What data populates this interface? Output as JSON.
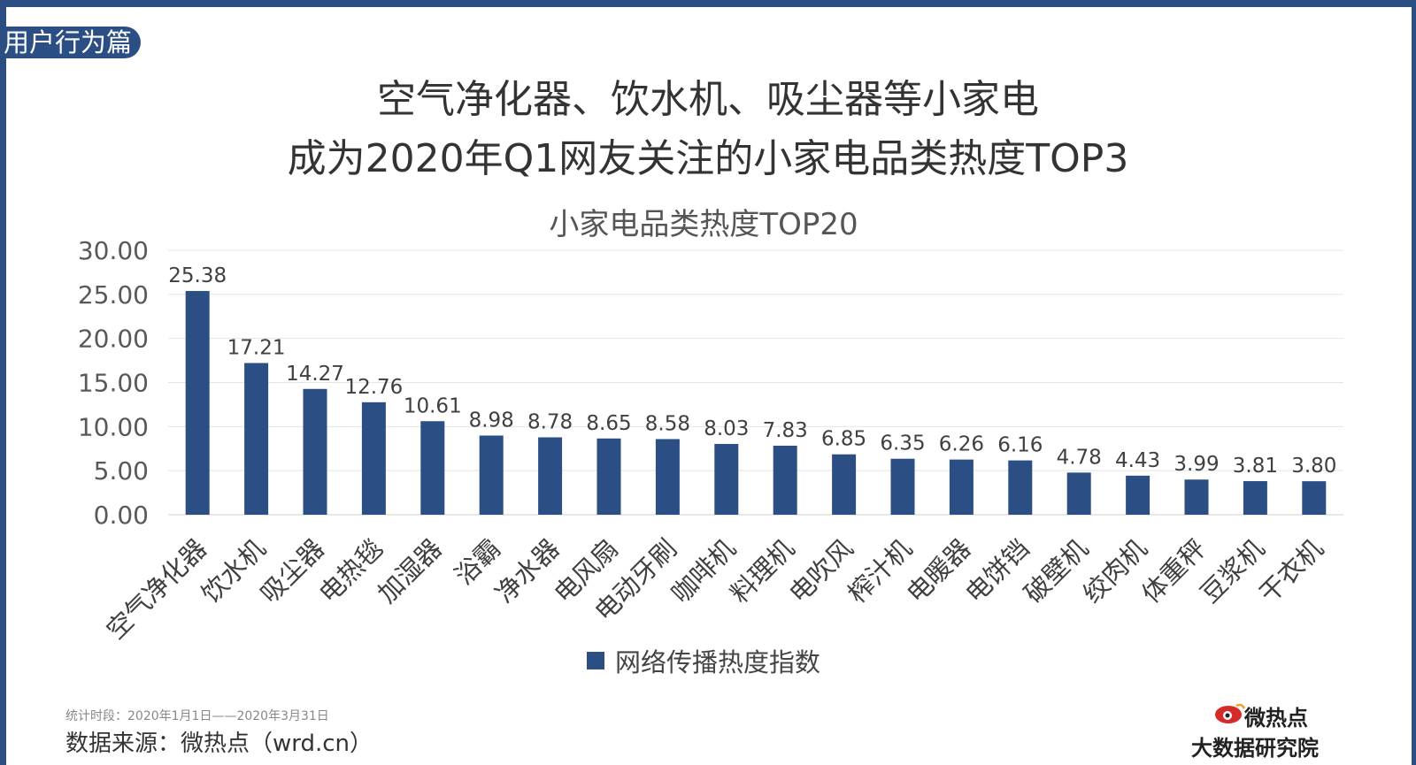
{
  "section_tag": "用户行为篇",
  "headline": {
    "line1": "空气净化器、饮水机、吸尘器等小家电",
    "line2": "成为2020年Q1网友关注的小家电品类热度TOP3"
  },
  "footer": {
    "period": "统计时段：2020年1月1日——2020年3月31日",
    "source": "数据来源：微热点（wrd.cn）"
  },
  "logo": {
    "name": "微热点",
    "subtitle": "大数据研究院",
    "icon": "weibo-eye-icon"
  },
  "colors": {
    "frame": "#2b4f84",
    "bar": "#2b4f84",
    "accent_red": "#d62b2b"
  },
  "chart_data": {
    "type": "bar",
    "title": "小家电品类热度TOP20",
    "xlabel": "",
    "ylabel": "",
    "categories": [
      "空气净化器",
      "饮水机",
      "吸尘器",
      "电热毯",
      "加湿器",
      "浴霸",
      "净水器",
      "电风扇",
      "电动牙刷",
      "咖啡机",
      "料理机",
      "电吹风",
      "榨汁机",
      "电暖器",
      "电饼铛",
      "破壁机",
      "绞肉机",
      "体重秤",
      "豆浆机",
      "干衣机"
    ],
    "series": [
      {
        "name": "网络传播热度指数",
        "values": [
          25.38,
          17.21,
          14.27,
          12.76,
          10.61,
          8.98,
          8.78,
          8.65,
          8.58,
          8.03,
          7.83,
          6.85,
          6.35,
          6.26,
          6.16,
          4.78,
          4.43,
          3.99,
          3.81,
          3.8
        ],
        "value_labels": [
          "25.38",
          "17.21",
          "14.27",
          "12.76",
          "10.61",
          "8.98",
          "8.78",
          "8.65",
          "8.58",
          "8.03",
          "7.83",
          "6.85",
          "6.35",
          "6.26",
          "6.16",
          "4.78",
          "4.43",
          "3.99",
          "3.81",
          "3.80"
        ]
      }
    ],
    "ylim": [
      0,
      30
    ],
    "yticks": [
      "0.00",
      "5.00",
      "10.00",
      "15.00",
      "20.00",
      "25.00",
      "30.00"
    ],
    "grid": true,
    "legend_position": "bottom"
  }
}
